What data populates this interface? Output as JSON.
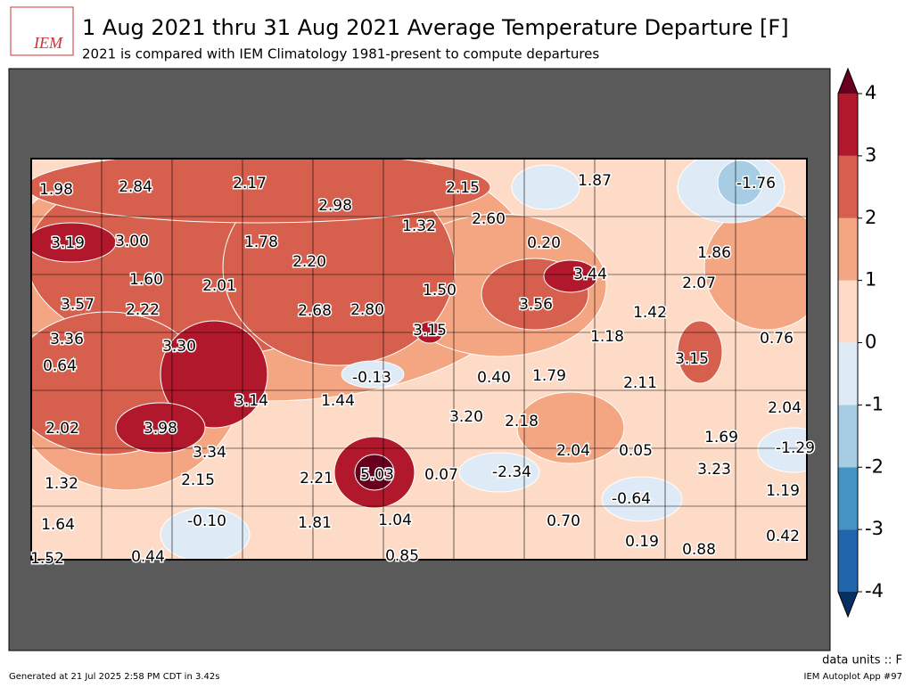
{
  "logo": "IEM",
  "title": "1 Aug 2021 thru 31 Aug 2021 Average Temperature Departure [F]",
  "subtitle": "2021 is compared with IEM Climatology 1981-present to compute departures",
  "stations": [
    "1.98",
    "2.84",
    "2.17",
    "2.98",
    "2.15",
    "1.87",
    "-1.76",
    "3.19",
    "3.00",
    "1.78",
    "2.20",
    "1.32",
    "2.60",
    "0.20",
    "1.86",
    "1.60",
    "2.01",
    "3.57",
    "2.22",
    "2.68",
    "2.80",
    "1.50",
    "3.56",
    "3.44",
    "2.07",
    "1.42",
    "3.36",
    "3.30",
    "3.15",
    "1.18",
    "3.15",
    "0.76",
    "0.64",
    "-0.13",
    "0.40",
    "1.79",
    "2.11",
    "3.14",
    "1.44",
    "2.04",
    "2.02",
    "3.98",
    "3.20",
    "2.18",
    "1.69",
    "-1.29",
    "3.34",
    "2.04",
    "0.05",
    "2.15",
    "2.21",
    "5.03",
    "0.07",
    "-2.34",
    "3.23",
    "1.32",
    "-0.64",
    "1.19",
    "1.64",
    "-0.10",
    "1.81",
    "1.04",
    "0.70",
    "0.42",
    "0.19",
    "0.88",
    "1.52",
    "0.44",
    "0.85"
  ],
  "colorbar": {
    "ticks": [
      -4,
      -3,
      -2,
      -1,
      0,
      1,
      2,
      3,
      4
    ],
    "colors": [
      "#2166ac",
      "#4393c3",
      "#a6cde3",
      "#deebf7",
      "#fddbc7",
      "#f4a582",
      "#d6604d",
      "#b2182b"
    ],
    "under": "#053061",
    "over": "#67001f"
  },
  "units": "data units :: F",
  "generated": "Generated at 21 Jul 2025 2:58 PM CDT in 3.42s",
  "app": "IEM Autoplot App #97"
}
